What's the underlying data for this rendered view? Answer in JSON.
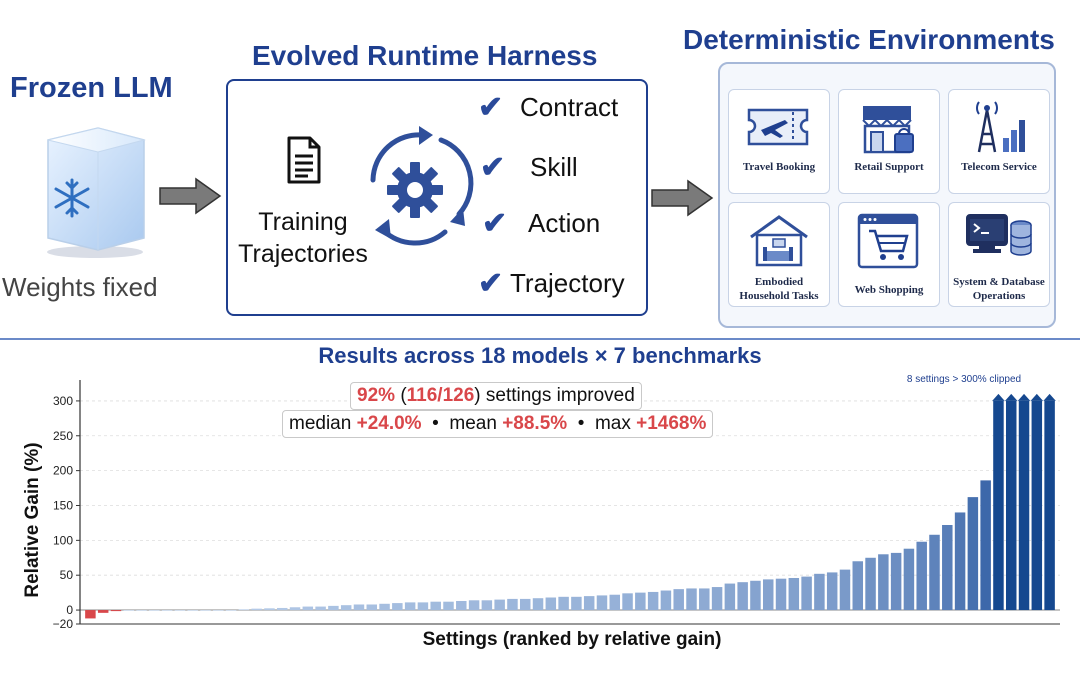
{
  "frozen": {
    "title": "Frozen LLM",
    "caption": "Weights fixed",
    "icon": "snowflake-cube-icon"
  },
  "harness": {
    "title": "Evolved Runtime Harness",
    "training_label": "Training Trajectories",
    "checks": [
      "Contract",
      "Skill",
      "Action",
      "Trajectory"
    ]
  },
  "environments": {
    "title": "Deterministic Environments",
    "cards": [
      {
        "label": "Travel Booking",
        "icon": "plane-ticket-icon"
      },
      {
        "label": "Retail Support",
        "icon": "storefront-icon"
      },
      {
        "label": "Telecom Service",
        "icon": "cell-tower-icon"
      },
      {
        "label": "Embodied Household Tasks",
        "icon": "house-icon"
      },
      {
        "label": "Web Shopping",
        "icon": "shopping-cart-icon"
      },
      {
        "label": "System & Database Operations",
        "icon": "terminal-database-icon"
      }
    ]
  },
  "results": {
    "title": "Results across 18 models × 7 benchmarks",
    "summary_pct": "92%",
    "summary_open": "(",
    "summary_count": "116/126",
    "summary_rest": ") settings improved",
    "median_label": "median",
    "median_value": "+24.0%",
    "mean_label": "mean",
    "mean_value": "+88.5%",
    "max_label": "max",
    "max_value": "+1468%",
    "bullet": "•",
    "clip_note": "8 settings > 300% clipped"
  },
  "colors": {
    "accent": "#1f3f8f",
    "negative": "#d9474a",
    "highlight": "#d9474a"
  },
  "chart_data": {
    "type": "bar",
    "xlabel": "Settings (ranked by relative gain)",
    "ylabel": "Relative Gain (%)",
    "ylim": [
      -20,
      330
    ],
    "yticks": [
      -20,
      0,
      50,
      100,
      150,
      200,
      250,
      300
    ],
    "clip_value": 300,
    "grid": true,
    "values": [
      -12,
      -4,
      -1.5,
      0,
      0,
      0,
      0,
      0,
      0,
      0,
      0,
      0,
      1,
      2,
      2.5,
      3,
      4,
      5,
      5,
      6,
      7,
      8,
      8,
      9,
      10,
      11,
      11,
      12,
      12,
      13,
      14,
      14,
      15,
      16,
      16,
      17,
      18,
      19,
      19,
      20,
      21,
      22,
      24,
      25,
      26,
      28,
      30,
      31,
      31,
      33,
      38,
      40,
      42,
      44,
      45,
      46,
      48,
      52,
      54,
      58,
      70,
      75,
      80,
      82,
      88,
      98,
      108,
      122,
      140,
      162,
      186,
      300,
      300,
      300,
      300,
      300
    ],
    "clipped_count_drawn": 5
  }
}
